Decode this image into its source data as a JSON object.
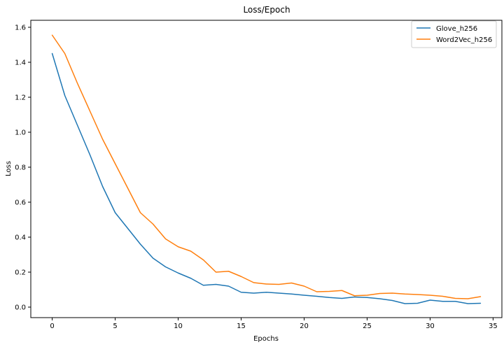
{
  "chart_data": {
    "type": "line",
    "title": "Loss/Epoch",
    "xlabel": "Epochs",
    "ylabel": "Loss",
    "xlim": [
      -1.7,
      35.7
    ],
    "ylim": [
      -0.06,
      1.64
    ],
    "xticks": [
      0,
      5,
      10,
      15,
      20,
      25,
      30,
      35
    ],
    "yticks": [
      0.0,
      0.2,
      0.4,
      0.6,
      0.8,
      1.0,
      1.2,
      1.4,
      1.6
    ],
    "ytick_labels": [
      "0.0",
      "0.2",
      "0.4",
      "0.6",
      "0.8",
      "1.0",
      "1.2",
      "1.4",
      "1.6"
    ],
    "grid": false,
    "legend_position": "top-right",
    "x": [
      0,
      1,
      2,
      3,
      4,
      5,
      6,
      7,
      8,
      9,
      10,
      11,
      12,
      13,
      14,
      15,
      16,
      17,
      18,
      19,
      20,
      21,
      22,
      23,
      24,
      25,
      26,
      27,
      28,
      29,
      30,
      31,
      32,
      33,
      34
    ],
    "series": [
      {
        "name": "Glove_h256",
        "color": "#1f77b4",
        "values": [
          1.45,
          1.21,
          1.04,
          0.87,
          0.69,
          0.54,
          0.45,
          0.36,
          0.28,
          0.23,
          0.195,
          0.165,
          0.125,
          0.13,
          0.12,
          0.085,
          0.08,
          0.085,
          0.08,
          0.075,
          0.068,
          0.062,
          0.055,
          0.05,
          0.058,
          0.055,
          0.048,
          0.038,
          0.02,
          0.022,
          0.04,
          0.033,
          0.033,
          0.02,
          0.022
        ]
      },
      {
        "name": "Word2Vec_h256",
        "color": "#ff7f0e",
        "values": [
          1.555,
          1.45,
          1.28,
          1.12,
          0.96,
          0.82,
          0.68,
          0.54,
          0.475,
          0.39,
          0.345,
          0.32,
          0.27,
          0.2,
          0.205,
          0.175,
          0.14,
          0.132,
          0.13,
          0.138,
          0.12,
          0.088,
          0.09,
          0.095,
          0.065,
          0.068,
          0.078,
          0.08,
          0.075,
          0.072,
          0.068,
          0.062,
          0.05,
          0.048,
          0.06
        ]
      }
    ]
  }
}
